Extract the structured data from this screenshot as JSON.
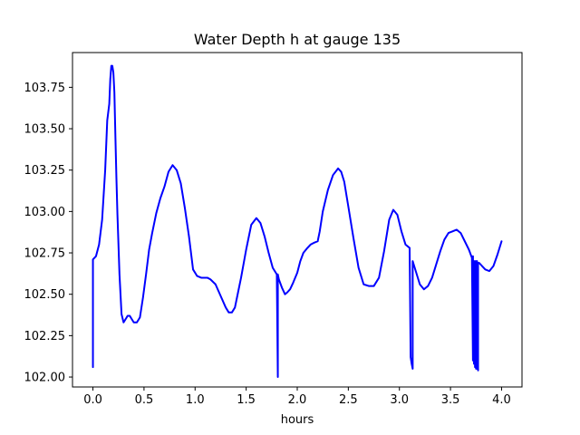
{
  "chart_data": {
    "type": "line",
    "title": "Water Depth h at gauge 135",
    "xlabel": "hours",
    "ylabel": "",
    "xlim": [
      -0.2,
      4.2
    ],
    "ylim": [
      101.94,
      103.96
    ],
    "x_ticks": [
      0.0,
      0.5,
      1.0,
      1.5,
      2.0,
      2.5,
      3.0,
      3.5,
      4.0
    ],
    "x_tick_labels": [
      "0.0",
      "0.5",
      "1.0",
      "1.5",
      "2.0",
      "2.5",
      "3.0",
      "3.5",
      "4.0"
    ],
    "y_ticks": [
      102.0,
      102.25,
      102.5,
      102.75,
      103.0,
      103.25,
      103.5,
      103.75
    ],
    "y_tick_labels": [
      "102.00",
      "102.25",
      "102.50",
      "102.75",
      "103.00",
      "103.25",
      "103.50",
      "103.75"
    ],
    "grid": false,
    "series_color": "#0000ff",
    "series": [
      {
        "x": [
          0.0,
          0.0,
          0.03,
          0.06,
          0.09,
          0.12,
          0.14,
          0.16,
          0.17,
          0.18,
          0.19,
          0.2,
          0.21,
          0.22,
          0.23,
          0.24,
          0.26,
          0.28,
          0.3,
          0.32,
          0.34,
          0.36,
          0.38,
          0.4,
          0.43,
          0.46,
          0.49,
          0.52,
          0.55,
          0.58,
          0.62,
          0.66,
          0.7,
          0.74,
          0.78,
          0.82,
          0.86,
          0.9,
          0.94,
          0.98,
          1.02,
          1.06,
          1.1,
          1.12,
          1.15,
          1.2,
          1.25,
          1.3,
          1.33,
          1.36,
          1.39,
          1.42,
          1.45,
          1.5,
          1.55,
          1.6,
          1.64,
          1.68,
          1.72,
          1.76,
          1.8,
          1.81,
          1.81,
          1.82,
          1.85,
          1.88,
          1.9,
          1.93,
          1.96,
          2.0,
          2.03,
          2.06,
          2.1,
          2.13,
          2.16,
          2.2,
          2.22,
          2.25,
          2.3,
          2.35,
          2.4,
          2.43,
          2.46,
          2.5,
          2.55,
          2.6,
          2.65,
          2.7,
          2.75,
          2.8,
          2.85,
          2.9,
          2.94,
          2.98,
          3.02,
          3.06,
          3.1,
          3.11,
          3.12,
          3.13,
          3.13,
          3.16,
          3.2,
          3.24,
          3.28,
          3.32,
          3.36,
          3.4,
          3.44,
          3.48,
          3.52,
          3.56,
          3.6,
          3.64,
          3.68,
          3.71,
          3.72,
          3.72,
          3.73,
          3.73,
          3.74,
          3.74,
          3.75,
          3.75,
          3.76,
          3.76,
          3.77,
          3.77,
          3.78,
          3.81,
          3.84,
          3.88,
          3.92,
          3.96,
          4.0
        ],
        "y": [
          102.06,
          102.71,
          102.73,
          102.8,
          102.95,
          103.25,
          103.55,
          103.65,
          103.8,
          103.88,
          103.88,
          103.84,
          103.72,
          103.45,
          103.2,
          102.98,
          102.62,
          102.38,
          102.33,
          102.35,
          102.37,
          102.37,
          102.35,
          102.33,
          102.33,
          102.36,
          102.48,
          102.62,
          102.77,
          102.87,
          102.99,
          103.08,
          103.15,
          103.24,
          103.28,
          103.25,
          103.17,
          103.02,
          102.85,
          102.65,
          102.61,
          102.6,
          102.6,
          102.6,
          102.59,
          102.56,
          102.49,
          102.42,
          102.39,
          102.39,
          102.42,
          102.51,
          102.6,
          102.77,
          102.92,
          102.96,
          102.93,
          102.85,
          102.75,
          102.66,
          102.62,
          102.0,
          102.62,
          102.59,
          102.54,
          102.5,
          102.51,
          102.53,
          102.57,
          102.63,
          102.7,
          102.75,
          102.78,
          102.8,
          102.81,
          102.82,
          102.88,
          103.0,
          103.13,
          103.22,
          103.26,
          103.24,
          103.18,
          103.03,
          102.84,
          102.66,
          102.56,
          102.55,
          102.55,
          102.6,
          102.76,
          102.95,
          103.01,
          102.98,
          102.88,
          102.8,
          102.78,
          102.12,
          102.08,
          102.05,
          102.7,
          102.64,
          102.56,
          102.53,
          102.55,
          102.6,
          102.68,
          102.76,
          102.83,
          102.87,
          102.88,
          102.89,
          102.87,
          102.82,
          102.77,
          102.72,
          102.1,
          102.73,
          102.08,
          102.7,
          102.06,
          102.7,
          102.05,
          102.7,
          102.05,
          102.7,
          102.04,
          102.69,
          102.69,
          102.67,
          102.65,
          102.64,
          102.67,
          102.74,
          102.82
        ]
      }
    ]
  }
}
